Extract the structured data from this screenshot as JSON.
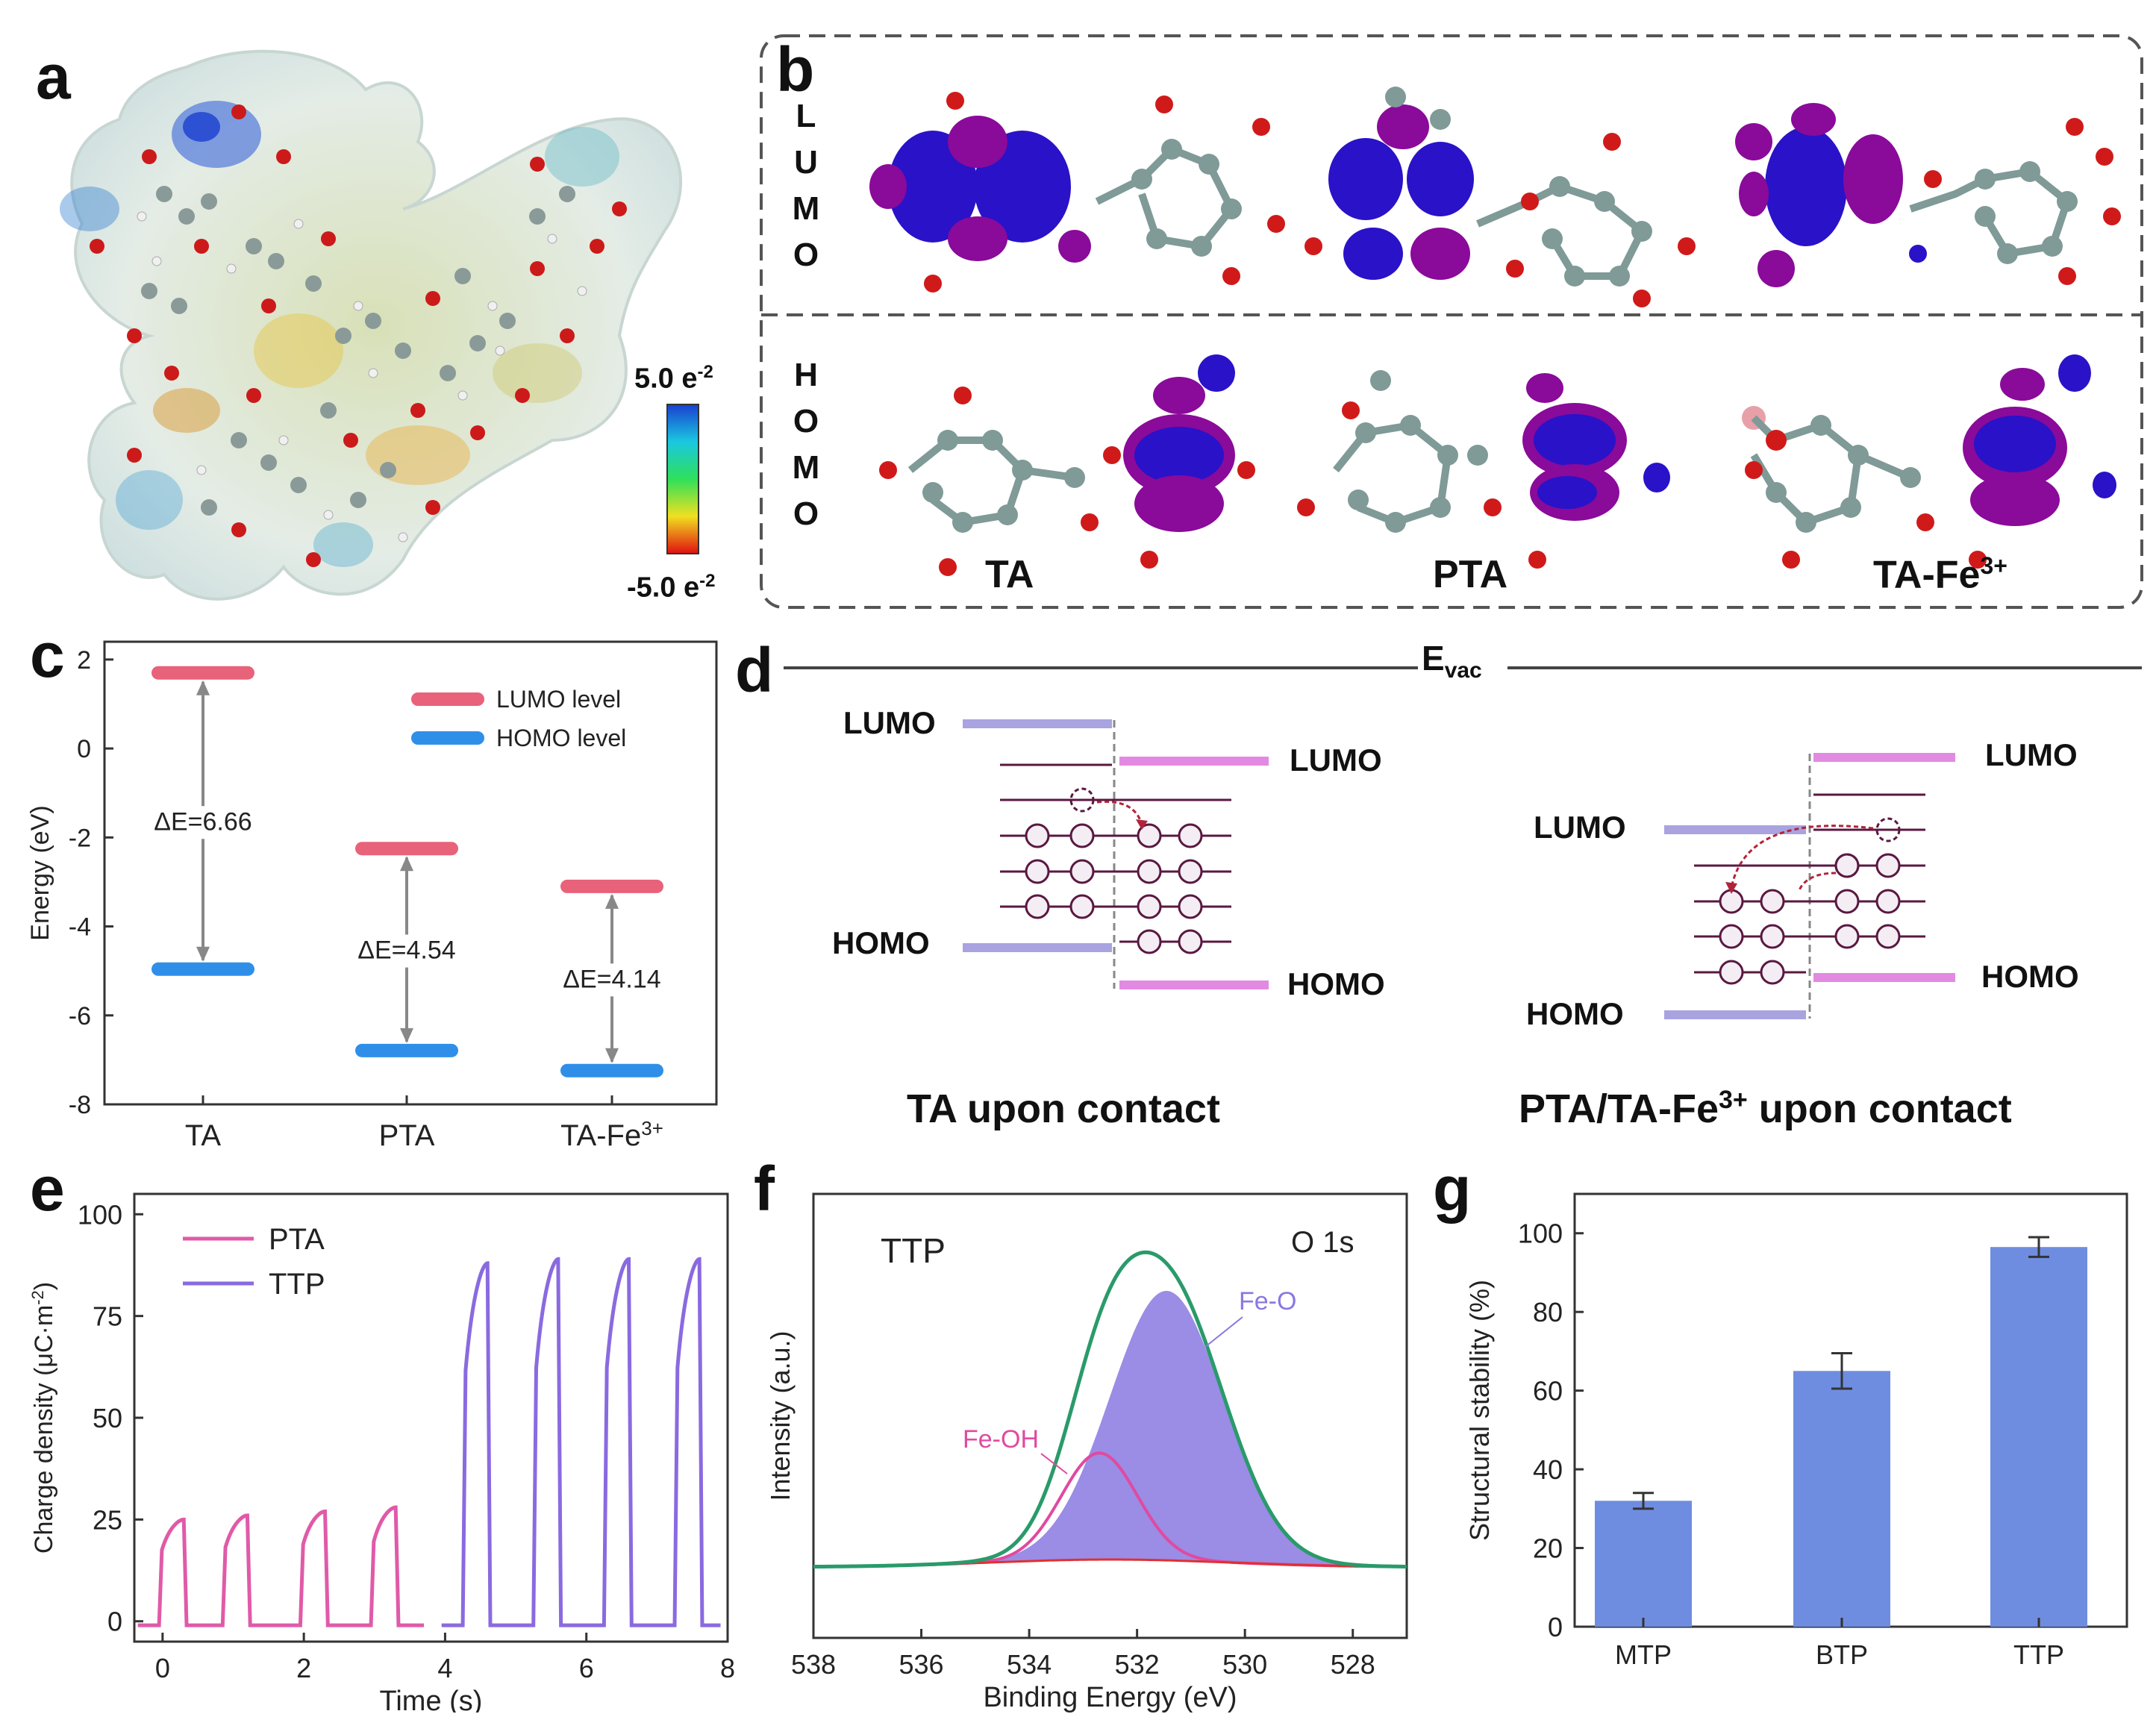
{
  "panels": {
    "a": {
      "letter": "a",
      "colorbar_max": "5.0 e",
      "colorbar_max_sup": "-2",
      "colorbar_min": "-5.0 e",
      "colorbar_min_sup": "-2",
      "colors": {
        "high": "#1a3fd0",
        "mid": "#2ee05a",
        "low": "#e01010",
        "surface": "#dfe8e2"
      }
    },
    "b": {
      "letter": "b",
      "row_labels": {
        "lumo": [
          "L",
          "U",
          "M",
          "O"
        ],
        "homo": [
          "H",
          "O",
          "M",
          "O"
        ]
      },
      "molecules": [
        "TA",
        "PTA",
        "TA-Fe"
      ],
      "tafe_sup": "3+",
      "colors": {
        "orbital_blue": "#2a12c8",
        "orbital_purple": "#8a0a9a",
        "carbon": "#7f9a97",
        "oxygen": "#d01a1a",
        "hydrogen": "#f2f2f2",
        "iron": "#e8a0a8"
      }
    },
    "c": {
      "letter": "c"
    },
    "d": {
      "letter": "d",
      "evac": "E",
      "evac_sub": "vac",
      "left": {
        "lumo_left": "LUMO",
        "homo_left": "HOMO",
        "lumo_right": "LUMO",
        "homo_right": "HOMO",
        "caption": "TA upon contact"
      },
      "right": {
        "lumo_left": "LUMO",
        "homo_left": "HOMO",
        "lumo_right": "LUMO",
        "homo_right": "HOMO",
        "caption_pre": "PTA/TA-Fe",
        "caption_sup": "3+",
        "caption_post": " upon contact"
      },
      "colors": {
        "left_level": "#a9a3e0",
        "right_level": "#e28ae2",
        "electron": "#5a1840",
        "arrow": "#b0243a"
      }
    },
    "e": {
      "letter": "e"
    },
    "f": {
      "letter": "f"
    },
    "g": {
      "letter": "g"
    }
  },
  "chart_data": [
    {
      "id": "c",
      "type": "energy-level",
      "xlabel": "",
      "ylabel": "Energy (eV)",
      "ylim": [
        -8,
        2.4
      ],
      "yticks": [
        2,
        0,
        -2,
        -4,
        -6,
        -8
      ],
      "categories": [
        "TA",
        "PTA",
        "TA-Fe3+"
      ],
      "category_labels": [
        {
          "text": "TA",
          "sup": ""
        },
        {
          "text": "PTA",
          "sup": ""
        },
        {
          "text": "TA-Fe",
          "sup": "3+"
        }
      ],
      "series": [
        {
          "name": "LUMO level",
          "color": "#e8627a",
          "values": [
            1.7,
            -2.25,
            -3.1
          ]
        },
        {
          "name": "HOMO level",
          "color": "#2f8fe8",
          "values": [
            -4.96,
            -6.79,
            -7.24
          ]
        }
      ],
      "gap_labels": [
        "ΔE=6.66",
        "ΔE=4.54",
        "ΔE=4.14"
      ],
      "legend": "top-right"
    },
    {
      "id": "e",
      "type": "line",
      "xlabel": "Time (s)",
      "ylabel": "Charge density (μC·m",
      "ylabel_sup": "-2",
      "ylabel_close": ")",
      "xlim": [
        -0.4,
        8
      ],
      "ylim": [
        -5,
        105
      ],
      "xticks": [
        0,
        2,
        4,
        6,
        8
      ],
      "yticks": [
        0,
        25,
        50,
        75,
        100
      ],
      "series": [
        {
          "name": "PTA",
          "color": "#e05aa8",
          "peaks": [
            25,
            26,
            27,
            28
          ],
          "peak_times": [
            0.3,
            1.2,
            2.3,
            3.3
          ]
        },
        {
          "name": "TTP",
          "color": "#8a6ae0",
          "peaks": [
            88,
            89,
            89,
            89
          ],
          "peak_times": [
            4.6,
            5.6,
            6.6,
            7.6
          ]
        }
      ],
      "legend": "top-left"
    },
    {
      "id": "f",
      "type": "line",
      "title": "TTP",
      "annotation": "O 1s",
      "xlabel": "Binding Energy (eV)",
      "ylabel": "Intensity (a.u.)",
      "xlim": [
        538,
        527
      ],
      "xticks": [
        538,
        536,
        534,
        532,
        530,
        528
      ],
      "series": [
        {
          "name": "Envelope",
          "color": "#2a9a6a",
          "center": 531.7,
          "height": 1.0
        },
        {
          "name": "Fe-O",
          "color": "#8a78e0",
          "center": 531.45,
          "height": 0.86
        },
        {
          "name": "Fe-OH",
          "color": "#e04aa0",
          "center": 532.7,
          "height": 0.34
        },
        {
          "name": "Background",
          "color": "#e03030"
        }
      ],
      "peak_labels": [
        "Fe-O",
        "Fe-OH"
      ]
    },
    {
      "id": "g",
      "type": "bar",
      "xlabel": "",
      "ylabel": "Structural stability (%)",
      "ylim": [
        0,
        110
      ],
      "yticks": [
        0,
        20,
        40,
        60,
        80,
        100
      ],
      "categories": [
        "MTP",
        "BTP",
        "TTP"
      ],
      "values": [
        32,
        65,
        96.5
      ],
      "errors": [
        2,
        4.5,
        2.5
      ],
      "color": "#6f8de0"
    }
  ]
}
